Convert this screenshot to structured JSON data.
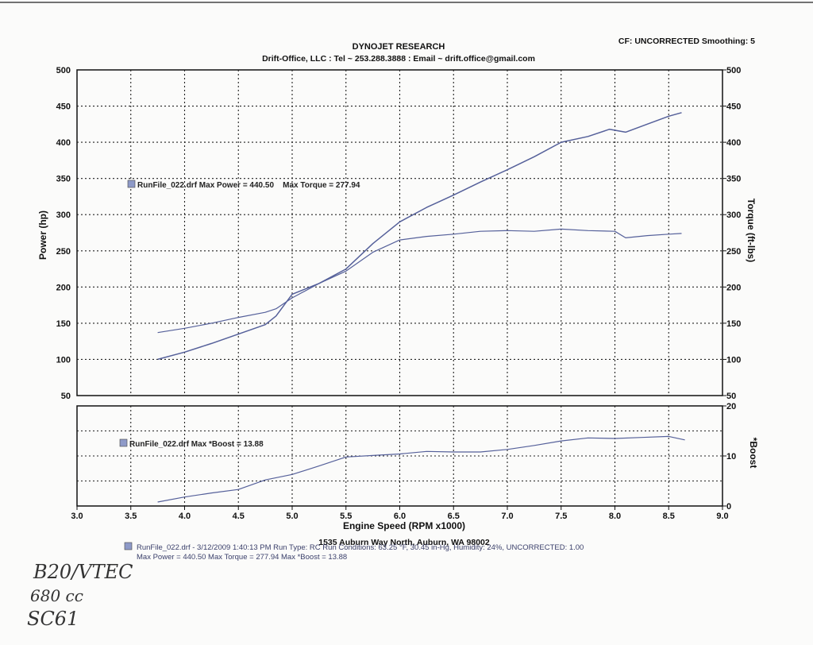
{
  "header": {
    "title": "DYNOJET RESEARCH",
    "subtitle": "Drift-Office, LLC : Tel ~ 253.288.3888 : Email ~ drift.office@gmail.com",
    "cf_info": "CF: UNCORRECTED  Smoothing: 5"
  },
  "footer": {
    "address": "1535 Auburn Way North, Auburn, WA 98002",
    "run_line1": "RunFile_022.drf - 3/12/2009 1:40:13 PM  Run Type: RC  Run Conditions: 63.25 °F, 30.45 in-Hg, Humidity: 24%, UNCORRECTED: 1.00",
    "run_line2": "Max Power = 440.50  Max Torque = 277.94  Max *Boost = 13.88"
  },
  "handwriting": {
    "line1": "B20/VTEC",
    "line2": "680 cc",
    "line3": "SC61"
  },
  "colors": {
    "curve": "#55609a",
    "grid": "#222222",
    "marker": "#8e9ac8"
  },
  "chart_data": [
    {
      "type": "line",
      "title": "",
      "legend": "RunFile_022.drf Max Power = 440.50    Max Torque = 277.94",
      "xlabel": "Engine Speed (RPM x1000)",
      "ylabel": "Power (hp)",
      "y2label": "Torque (ft-lbs)",
      "xlim": [
        3.0,
        9.0
      ],
      "ylim": [
        50,
        500
      ],
      "y2lim": [
        50,
        500
      ],
      "xticks": [
        "3.0",
        "3.5",
        "4.0",
        "4.5",
        "5.0",
        "5.5",
        "6.0",
        "6.5",
        "7.0",
        "7.5",
        "8.0",
        "8.5",
        "9.0"
      ],
      "yticks": [
        "50",
        "100",
        "150",
        "200",
        "250",
        "300",
        "350",
        "400",
        "450",
        "500"
      ],
      "y2ticks": [
        "50",
        "100",
        "150",
        "200",
        "250",
        "300",
        "350",
        "400",
        "450",
        "500"
      ],
      "grid": true,
      "series": [
        {
          "name": "Power",
          "axis": "left",
          "x": [
            3.75,
            4.0,
            4.25,
            4.5,
            4.75,
            4.85,
            5.0,
            5.25,
            5.5,
            5.75,
            6.0,
            6.25,
            6.5,
            6.75,
            7.0,
            7.25,
            7.5,
            7.75,
            7.95,
            8.1,
            8.3,
            8.5,
            8.62
          ],
          "y": [
            100,
            110,
            122,
            135,
            148,
            160,
            190,
            205,
            225,
            260,
            290,
            310,
            327,
            345,
            362,
            380,
            400,
            408,
            418,
            414,
            425,
            436,
            441
          ]
        },
        {
          "name": "Torque",
          "axis": "right",
          "x": [
            3.75,
            4.0,
            4.25,
            4.5,
            4.75,
            4.85,
            5.0,
            5.25,
            5.5,
            5.75,
            6.0,
            6.25,
            6.5,
            6.75,
            7.0,
            7.25,
            7.5,
            7.75,
            8.0,
            8.1,
            8.3,
            8.5,
            8.62
          ],
          "y": [
            137,
            143,
            150,
            158,
            165,
            170,
            185,
            205,
            222,
            248,
            265,
            270,
            273,
            277,
            278,
            277,
            280,
            278,
            277,
            268,
            271,
            273,
            274
          ]
        }
      ]
    },
    {
      "type": "line",
      "title": "",
      "legend": "RunFile_022.drf Max *Boost = 13.88",
      "xlabel": "Engine Speed (RPM x1000)",
      "y2label": "*Boost",
      "xlim": [
        3.0,
        9.0
      ],
      "ylim": [
        0,
        20
      ],
      "yticks": [
        "0",
        "10",
        "20"
      ],
      "grid": true,
      "series": [
        {
          "name": "*Boost",
          "x": [
            3.75,
            4.0,
            4.25,
            4.5,
            4.75,
            5.0,
            5.25,
            5.5,
            5.75,
            6.0,
            6.25,
            6.5,
            6.75,
            7.0,
            7.25,
            7.5,
            7.75,
            8.0,
            8.25,
            8.5,
            8.65
          ],
          "y": [
            0.8,
            1.8,
            2.6,
            3.3,
            5.2,
            6.3,
            8.0,
            9.8,
            10.1,
            10.4,
            10.9,
            10.8,
            10.8,
            11.3,
            12.1,
            13.0,
            13.6,
            13.5,
            13.7,
            13.9,
            13.2
          ]
        }
      ]
    }
  ]
}
